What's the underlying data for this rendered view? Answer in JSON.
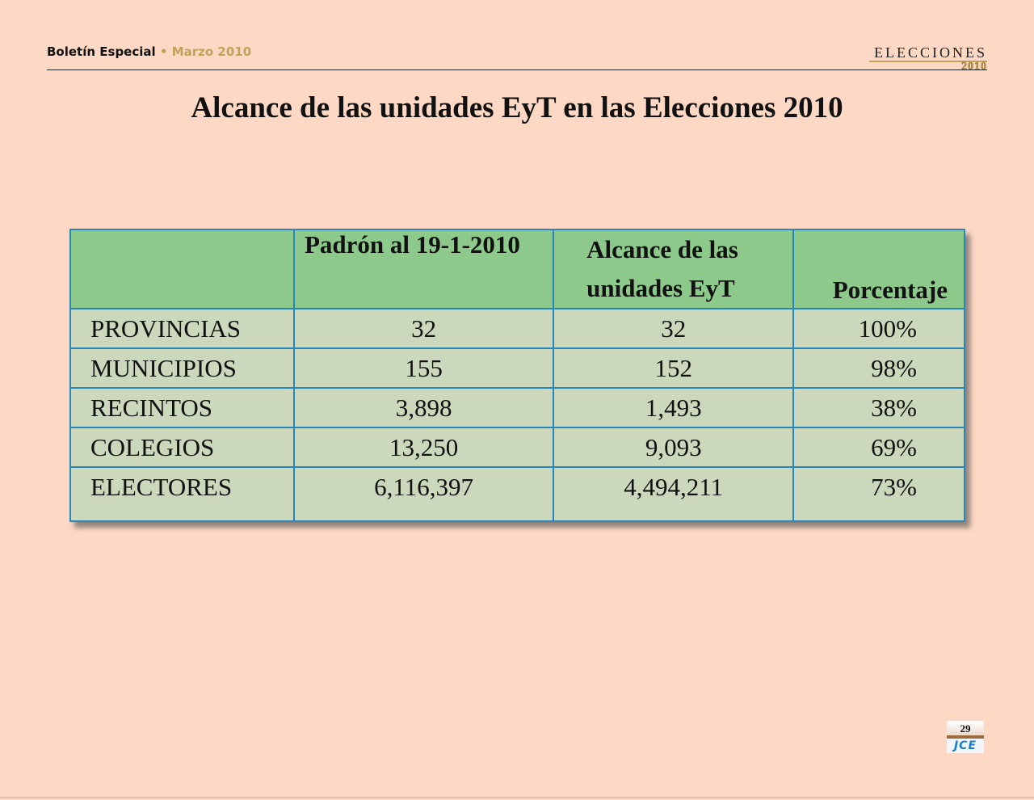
{
  "header": {
    "publication": "Boletín Especial",
    "separator": "•",
    "date": "Marzo 2010",
    "logo_word": "ELECCIONES",
    "logo_year": "2010"
  },
  "title": "Alcance de las unidades EyT en las Elecciones 2010",
  "table": {
    "headers": [
      "",
      "Padrón al 19-1-2010",
      "Alcance de las unidades EyT",
      "Porcentaje"
    ],
    "header_alcance_line1": "Alcance de las",
    "header_alcance_line2": "unidades EyT",
    "rows": [
      {
        "label": "PROVINCIAS",
        "padron": "32",
        "alcance": "32",
        "porcentaje": "100%"
      },
      {
        "label": "MUNICIPIOS",
        "padron": "155",
        "alcance": "152",
        "porcentaje": "98%"
      },
      {
        "label": "RECINTOS",
        "padron": "3,898",
        "alcance": "1,493",
        "porcentaje": "38%"
      },
      {
        "label": "COLEGIOS",
        "padron": "13,250",
        "alcance": "9,093",
        "porcentaje": "69%"
      },
      {
        "label": "ELECTORES",
        "padron": "6,116,397",
        "alcance": "4,494,211",
        "porcentaje": "73%"
      }
    ]
  },
  "footer": {
    "page_number": "29",
    "org_logo": "JCE"
  },
  "colors": {
    "background": "#fdd9c5",
    "header_fill": "#8dc98a",
    "body_fill": "#cbd8bb",
    "grid": "#2a86b8",
    "accent": "#c4a05a"
  }
}
